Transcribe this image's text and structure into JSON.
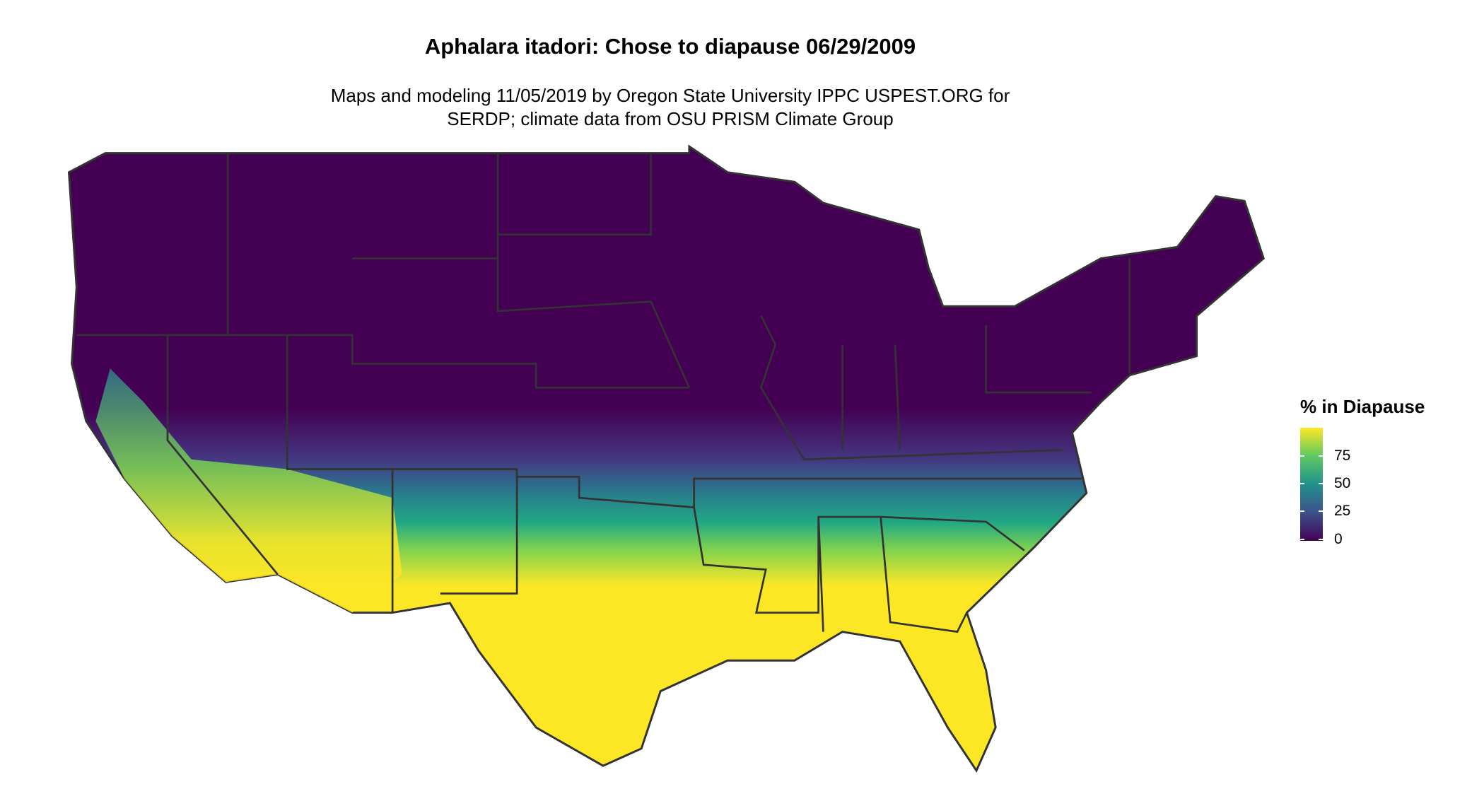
{
  "title": "Aphalara itadori: Chose to diapause 06/29/2009",
  "subtitle_line1": "Maps and modeling 11/05/2019 by Oregon State University IPPC USPEST.ORG for",
  "subtitle_line2": "SERDP; climate data from OSU PRISM Climate Group",
  "legend": {
    "title": "% in Diapause",
    "ticks": [
      "0",
      "25",
      "50",
      "75"
    ],
    "range": [
      0,
      100
    ],
    "palette": [
      "#440154",
      "#3b528b",
      "#21918c",
      "#5ec962",
      "#fde725"
    ]
  },
  "map": {
    "region": "Contiguous United States",
    "pattern": "north low diapause (purple), south high diapause (yellow)",
    "border_color": "#333333"
  }
}
